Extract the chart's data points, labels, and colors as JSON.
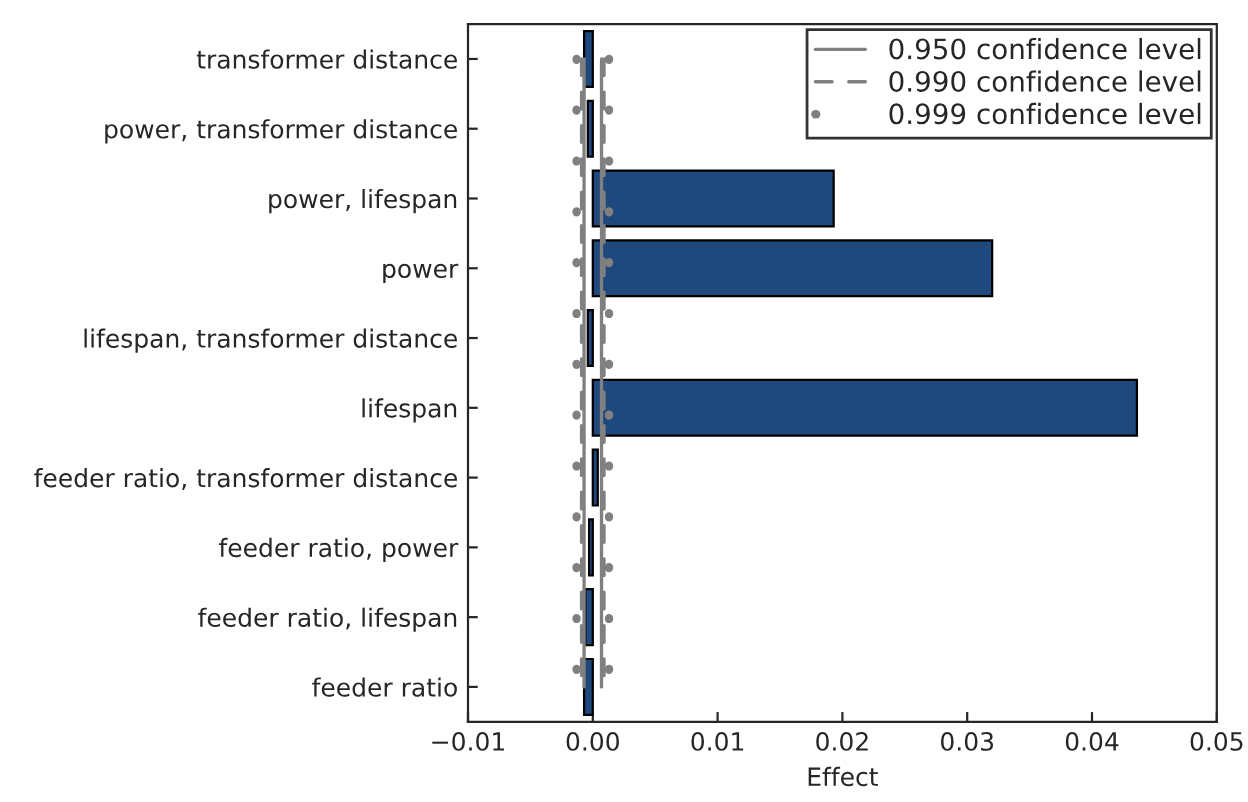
{
  "chart_data": {
    "type": "bar",
    "orientation": "horizontal",
    "xlabel": "Effect",
    "categories": [
      "transformer distance",
      "power, transformer distance",
      "power, lifespan",
      "power",
      "lifespan, transformer distance",
      "lifespan",
      "feeder ratio, transformer distance",
      "feeder ratio, power",
      "feeder ratio, lifespan",
      "feeder ratio"
    ],
    "series": [
      {
        "color": "#1f487c",
        "values": [
          -0.0007,
          -0.0004,
          0.0193,
          0.032,
          -0.0004,
          0.0436,
          0.0004,
          -0.0003,
          -0.0006,
          -0.0007
        ]
      },
      {
        "type": "line",
        "name": "0.950 confidence level",
        "color": "#808080",
        "line_style": "solid",
        "values": [
          -0.0007,
          -0.0007,
          -0.0007,
          -0.0007,
          -0.0007,
          -0.0007,
          -0.0007,
          -0.0007,
          -0.0007,
          -0.0007
        ]
      },
      {
        "type": "line",
        "color": "#808080",
        "line_style": "solid",
        "values": [
          0.0007,
          0.0007,
          0.0007,
          0.0007,
          0.0007,
          0.0007,
          0.0007,
          0.0007,
          0.0007,
          0.0007
        ]
      },
      {
        "type": "line",
        "name": "0.990 confidence level",
        "color": "#808080",
        "line_style": "dashed",
        "values": [
          -0.0009,
          -0.0009,
          -0.0009,
          -0.0009,
          -0.0009,
          -0.0009,
          -0.0009,
          -0.0009,
          -0.0009,
          -0.0009
        ]
      },
      {
        "type": "line",
        "color": "#808080",
        "line_style": "dashed",
        "values": [
          0.0009,
          0.0009,
          0.0009,
          0.0009,
          0.0009,
          0.0009,
          0.0009,
          0.0009,
          0.0009,
          0.0009
        ]
      },
      {
        "type": "line",
        "name": "0.999 confidence level",
        "color": "#808080",
        "line_style": "dotted",
        "values": [
          -0.0013,
          -0.0013,
          -0.0013,
          -0.0013,
          -0.0013,
          -0.0013,
          -0.0013,
          -0.0013,
          -0.0013,
          -0.0013
        ]
      },
      {
        "type": "line",
        "color": "#808080",
        "line_style": "dotted",
        "values": [
          0.0013,
          0.0013,
          0.0013,
          0.0013,
          0.0013,
          0.0013,
          0.0013,
          0.0013,
          0.0013,
          0.0013
        ]
      }
    ],
    "xlim": [
      -0.01,
      0.05
    ],
    "xticks": [
      {
        "value": -0.01,
        "label": "−0.01"
      },
      {
        "value": 0,
        "label": "0.00"
      },
      {
        "value": 0.01,
        "label": "0.01"
      },
      {
        "value": 0.02,
        "label": "0.02"
      },
      {
        "value": 0.03,
        "label": "0.03"
      },
      {
        "value": 0.04,
        "label": "0.04"
      },
      {
        "value": 0.05,
        "label": "0.05"
      }
    ],
    "legend": "top right",
    "grid": false
  }
}
